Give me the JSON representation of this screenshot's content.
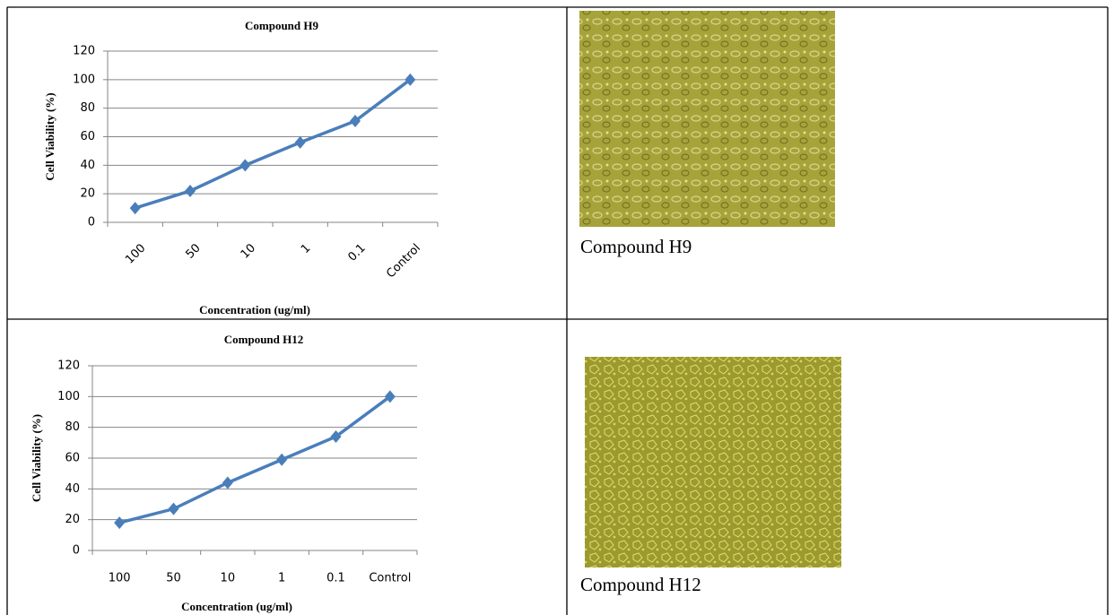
{
  "chart_data": [
    {
      "type": "line",
      "title": "Compound H9",
      "y_label": "Cell Viability (%)",
      "x_label": "Concentration (ug/ml)",
      "categories": [
        "100",
        "50",
        "10",
        "1",
        "0.1",
        "Control"
      ],
      "values": [
        10,
        22,
        40,
        56,
        71,
        100
      ],
      "color": "#4a7ebb",
      "ylim": [
        0,
        120
      ],
      "yticks": [
        0,
        20,
        40,
        60,
        80,
        100,
        120
      ],
      "grid": true,
      "xtick_rotation": -45
    },
    {
      "type": "line",
      "title": "Compound H12",
      "y_label": "Cell Viability (%)",
      "x_label": "Concentration (ug/ml)",
      "categories": [
        "100",
        "50",
        "10",
        "1",
        "0.1",
        "Control"
      ],
      "values": [
        18,
        27,
        44,
        59,
        74,
        100
      ],
      "color": "#4a7ebb",
      "ylim": [
        0,
        120
      ],
      "yticks": [
        0,
        20,
        40,
        60,
        80,
        100,
        120
      ],
      "grid": true,
      "xtick_rotation": 0
    }
  ],
  "captions": [
    "Compound H9",
    "Compound H12"
  ]
}
